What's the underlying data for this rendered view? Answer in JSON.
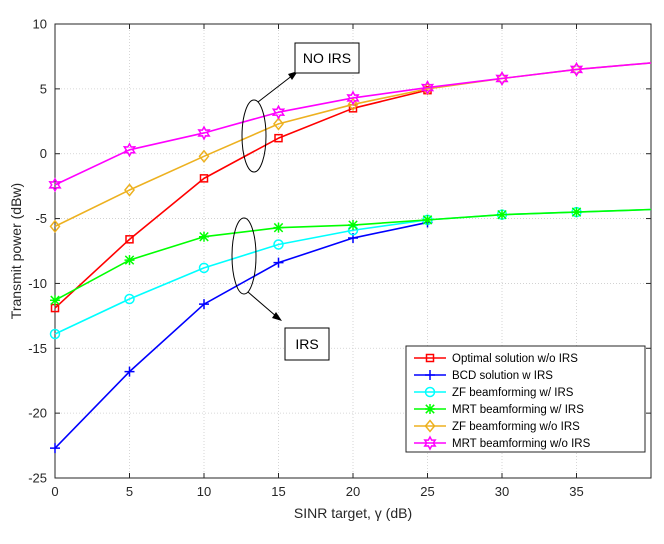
{
  "chart_data": {
    "type": "line",
    "title": "",
    "xlabel": "SINR target, γ (dB)",
    "ylabel": "Transmit power (dBw)",
    "xlim": [
      0,
      40
    ],
    "ylim": [
      -25,
      10
    ],
    "xticks": [
      0,
      5,
      10,
      15,
      20,
      25,
      30,
      35
    ],
    "yticks": [
      -25,
      -20,
      -15,
      -10,
      -5,
      0,
      5,
      10
    ],
    "grid": true,
    "legend_position": "bottom-right",
    "series": [
      {
        "name": "Optimal solution w/o IRS",
        "color": "#ff0000",
        "marker": "square",
        "x": [
          0,
          5,
          10,
          15,
          20,
          25
        ],
        "y": [
          -11.9,
          -6.6,
          -1.9,
          1.2,
          3.5,
          4.9
        ]
      },
      {
        "name": "BCD solution w IRS",
        "color": "#0000ff",
        "marker": "plus",
        "x": [
          0,
          5,
          10,
          15,
          20,
          25
        ],
        "y": [
          -22.7,
          -16.8,
          -11.6,
          -8.4,
          -6.5,
          -5.3
        ]
      },
      {
        "name": "ZF beamforming w/ IRS",
        "color": "#00ffff",
        "marker": "circle",
        "x": [
          0,
          5,
          10,
          15,
          20,
          25,
          30,
          35,
          40
        ],
        "y": [
          -13.9,
          -11.2,
          -8.8,
          -7.0,
          -5.9,
          -5.1,
          -4.7,
          -4.5,
          -4.3
        ]
      },
      {
        "name": "MRT beamforming w/ IRS",
        "color": "#00ff00",
        "marker": "asterisk",
        "x": [
          0,
          5,
          10,
          15,
          20,
          25,
          30,
          35,
          40
        ],
        "y": [
          -11.3,
          -8.2,
          -6.4,
          -5.7,
          -5.5,
          -5.1,
          -4.7,
          -4.5,
          -4.3
        ]
      },
      {
        "name": "ZF beamforming w/o IRS",
        "color": "#edb120",
        "marker": "diamond",
        "x": [
          0,
          5,
          10,
          15,
          20,
          25,
          30,
          35,
          40
        ],
        "y": [
          -5.6,
          -2.8,
          -0.2,
          2.3,
          3.8,
          5.0,
          5.8,
          6.5,
          7.0
        ]
      },
      {
        "name": "MRT beamforming w/o IRS",
        "color": "#ff00ff",
        "marker": "hexagram",
        "x": [
          0,
          5,
          10,
          15,
          20,
          25,
          30,
          35,
          40
        ],
        "y": [
          -2.4,
          0.3,
          1.6,
          3.2,
          4.3,
          5.1,
          5.8,
          6.5,
          7.0
        ]
      }
    ],
    "annotations": [
      {
        "id": "no_irs",
        "text": "NO IRS"
      },
      {
        "id": "irs",
        "text": "IRS"
      }
    ]
  }
}
